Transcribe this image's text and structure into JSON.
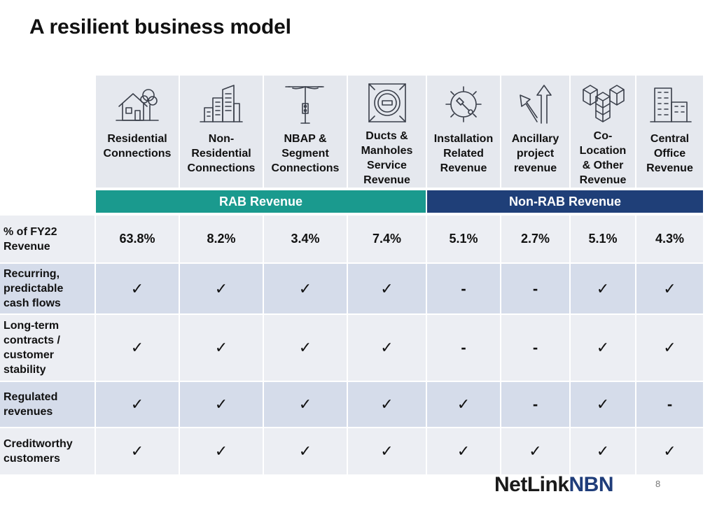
{
  "title": "A resilient business model",
  "columns": [
    {
      "label": "Residential\nConnections",
      "icon": "house-icon"
    },
    {
      "label": "Non-\nResidential\nConnections",
      "icon": "office-buildings-icon"
    },
    {
      "label": "NBAP &\nSegment\nConnections",
      "icon": "street-light-icon"
    },
    {
      "label": "Ducts &\nManholes\nService\nRevenue",
      "icon": "manhole-cover-icon"
    },
    {
      "label": "Installation\nRelated\nRevenue",
      "icon": "gear-wrench-icon"
    },
    {
      "label": "Ancillary\nproject\nrevenue",
      "icon": "split-arrows-icon"
    },
    {
      "label": "Co-\nLocation\n& Other\nRevenue",
      "icon": "server-cubes-icon"
    },
    {
      "label": "Central\nOffice\nRevenue",
      "icon": "central-office-building-icon"
    }
  ],
  "bands": [
    {
      "label": "RAB Revenue",
      "color": "#1a9a8e"
    },
    {
      "label": "Non-RAB Revenue",
      "color": "#1f3f78"
    }
  ],
  "rows": [
    {
      "label": "% of FY22\nRevenue",
      "values": [
        "63.8%",
        "8.2%",
        "3.4%",
        "7.4%",
        "5.1%",
        "2.7%",
        "5.1%",
        "4.3%"
      ]
    },
    {
      "label": "Recurring,\npredictable\ncash flows",
      "values": [
        "✓",
        "✓",
        "✓",
        "✓",
        "-",
        "-",
        "✓",
        "✓"
      ]
    },
    {
      "label": "Long-term\ncontracts /\ncustomer\nstability",
      "values": [
        "✓",
        "✓",
        "✓",
        "✓",
        "-",
        "-",
        "✓",
        "✓"
      ]
    },
    {
      "label": "Regulated\nrevenues",
      "values": [
        "✓",
        "✓",
        "✓",
        "✓",
        "✓",
        "-",
        "✓",
        "-"
      ]
    },
    {
      "label": "Creditworthy\ncustomers",
      "values": [
        "✓",
        "✓",
        "✓",
        "✓",
        "✓",
        "✓",
        "✓",
        "✓"
      ]
    }
  ],
  "logo": {
    "part1": "NetLink",
    "part2": "NBN"
  },
  "page_number": "8"
}
